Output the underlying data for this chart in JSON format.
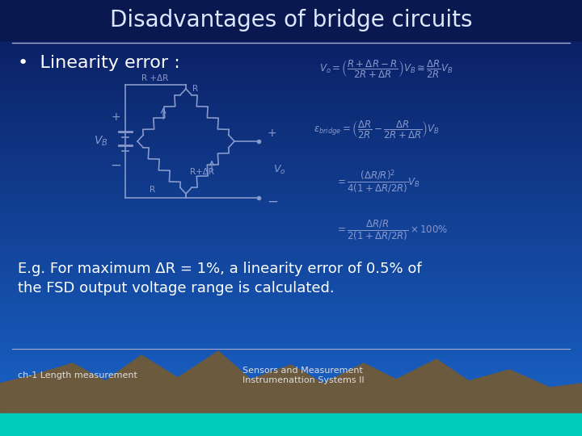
{
  "title": "Disadvantages of bridge circuits",
  "bg_top": "#0a1a5c",
  "bg_bottom": "#1a66cc",
  "title_color": "#dde8ff",
  "title_fontsize": 20,
  "bullet_text": "Linearity error :",
  "bullet_color": "#ffffff",
  "bullet_fontsize": 16,
  "formula_color": "#8899cc",
  "formula_fontsize": 8.5,
  "example_color": "#ffffff",
  "example_fontsize": 13,
  "footer_left": "ch-1 Length measurement",
  "footer_right": "Sensors and Measurement\nInstrumenattion Systems II",
  "footer_color": "#dddddd",
  "footer_fontsize": 8,
  "line_color": "#aaaacc",
  "circuit_color": "#8899cc",
  "mountain_color": "#6b5a3e",
  "teal_color": "#00ccbb"
}
